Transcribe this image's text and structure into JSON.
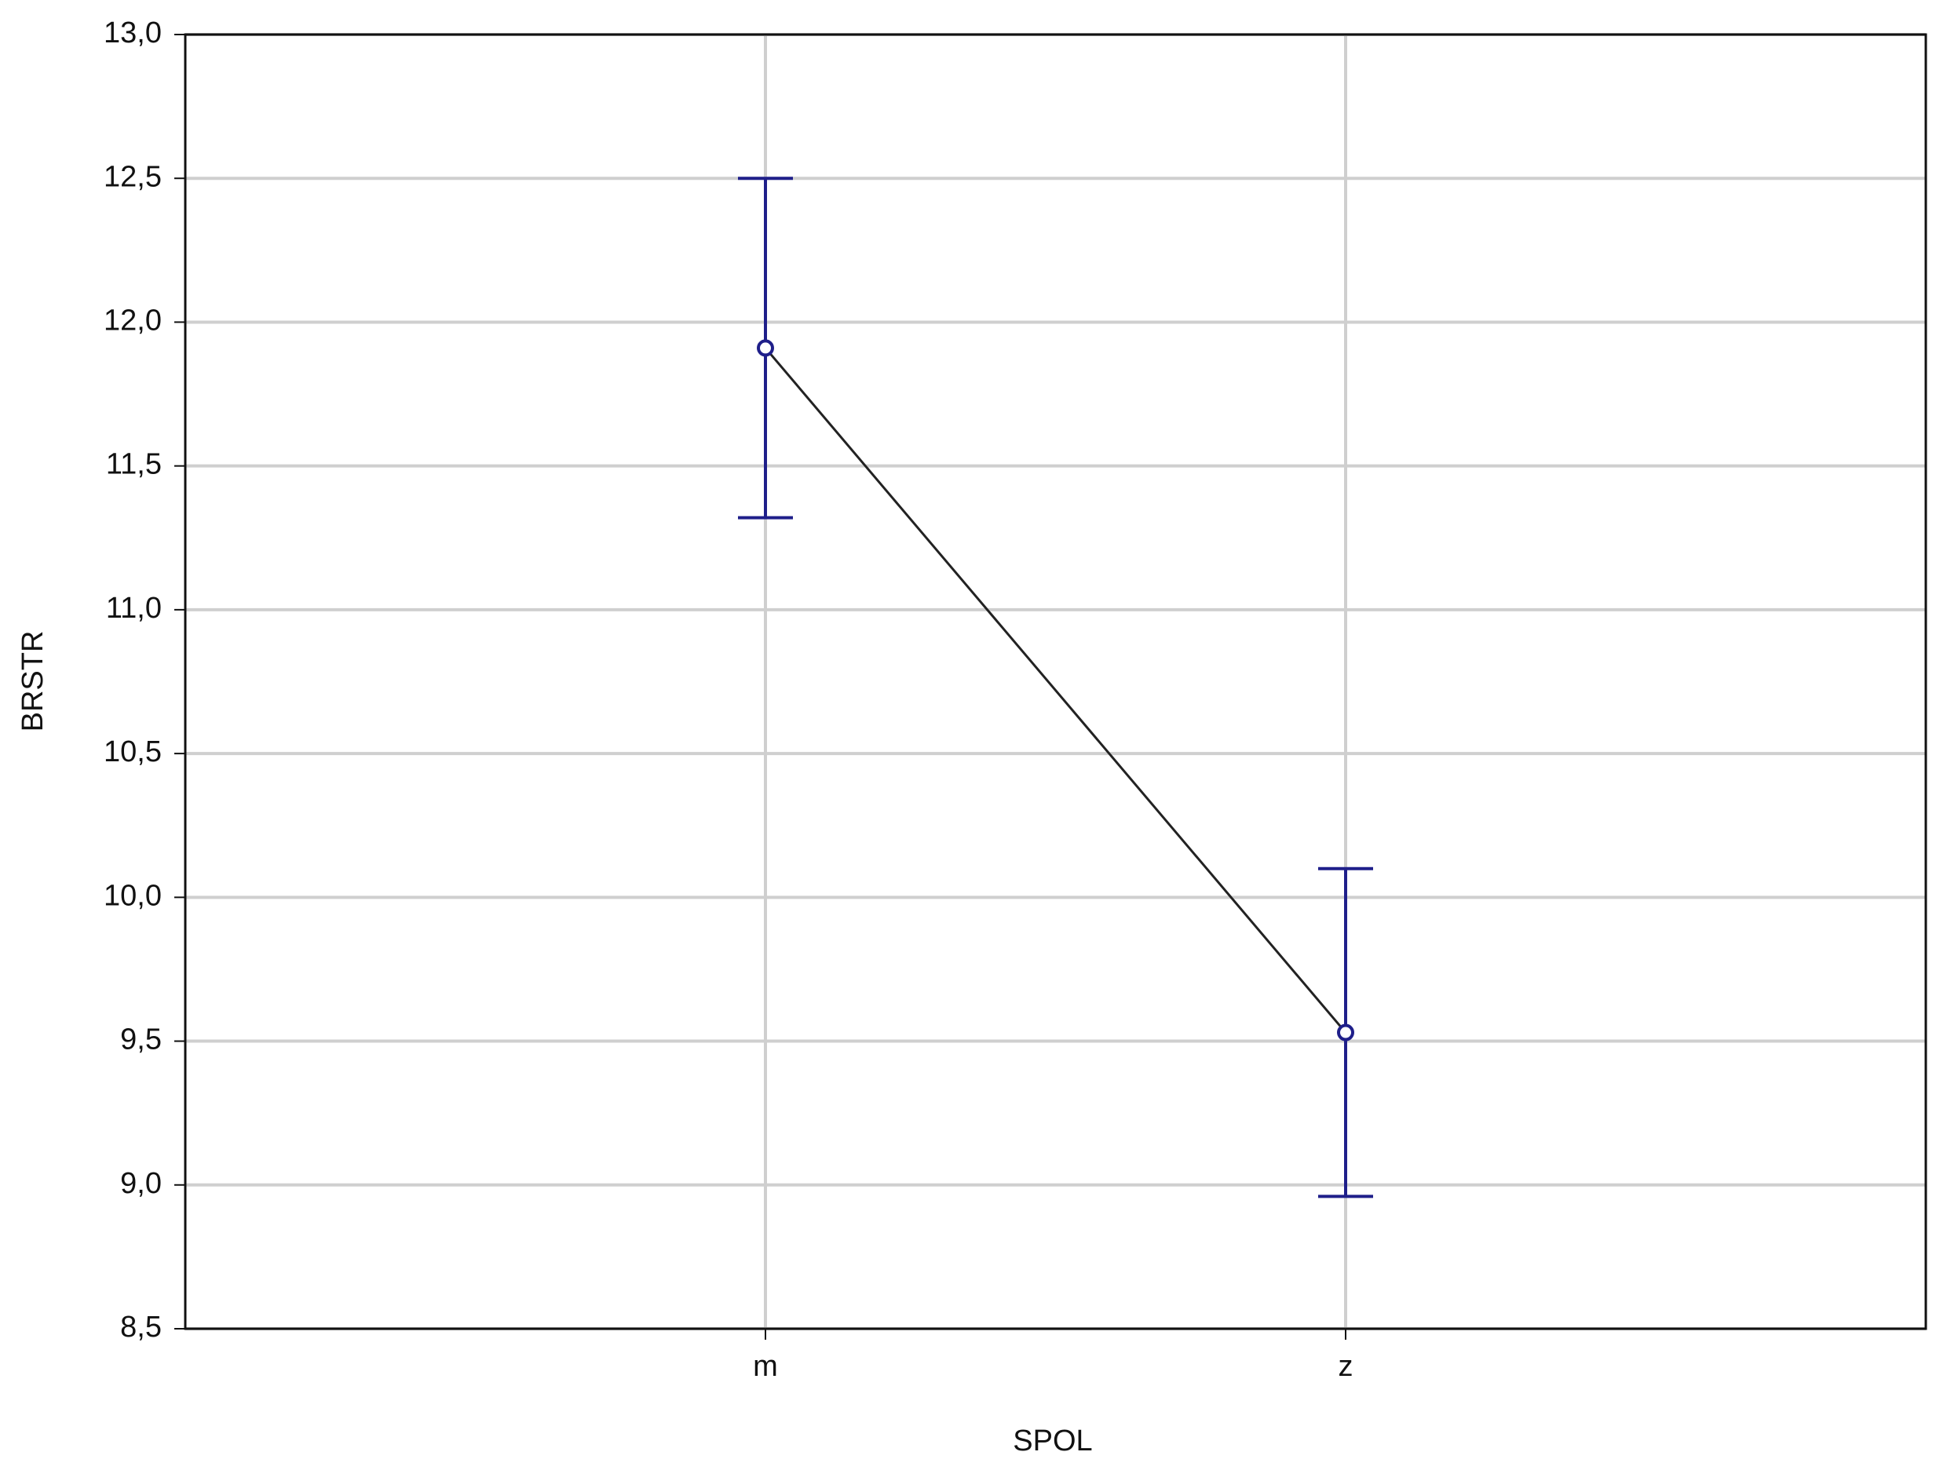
{
  "chart_data": {
    "type": "line",
    "x_label": "SPOL",
    "y_label": "BRSTR",
    "categories": [
      "m",
      "z"
    ],
    "values": [
      11.91,
      9.53
    ],
    "errors": [
      0.59,
      0.57
    ],
    "color": "#1f1f8a",
    "line_color": "#222222",
    "ylim": [
      8.5,
      13.0
    ],
    "yticks": [
      {
        "value": 8.5,
        "label": "8,5"
      },
      {
        "value": 9.0,
        "label": "9,0"
      },
      {
        "value": 9.5,
        "label": "9,5"
      },
      {
        "value": 10.0,
        "label": "10,0"
      },
      {
        "value": 10.5,
        "label": "10,5"
      },
      {
        "value": 11.0,
        "label": "11,0"
      },
      {
        "value": 11.5,
        "label": "11,5"
      },
      {
        "value": 12.0,
        "label": "12,0"
      },
      {
        "value": 12.5,
        "label": "12,5"
      },
      {
        "value": 13.0,
        "label": "13,0"
      }
    ],
    "grid": true
  }
}
